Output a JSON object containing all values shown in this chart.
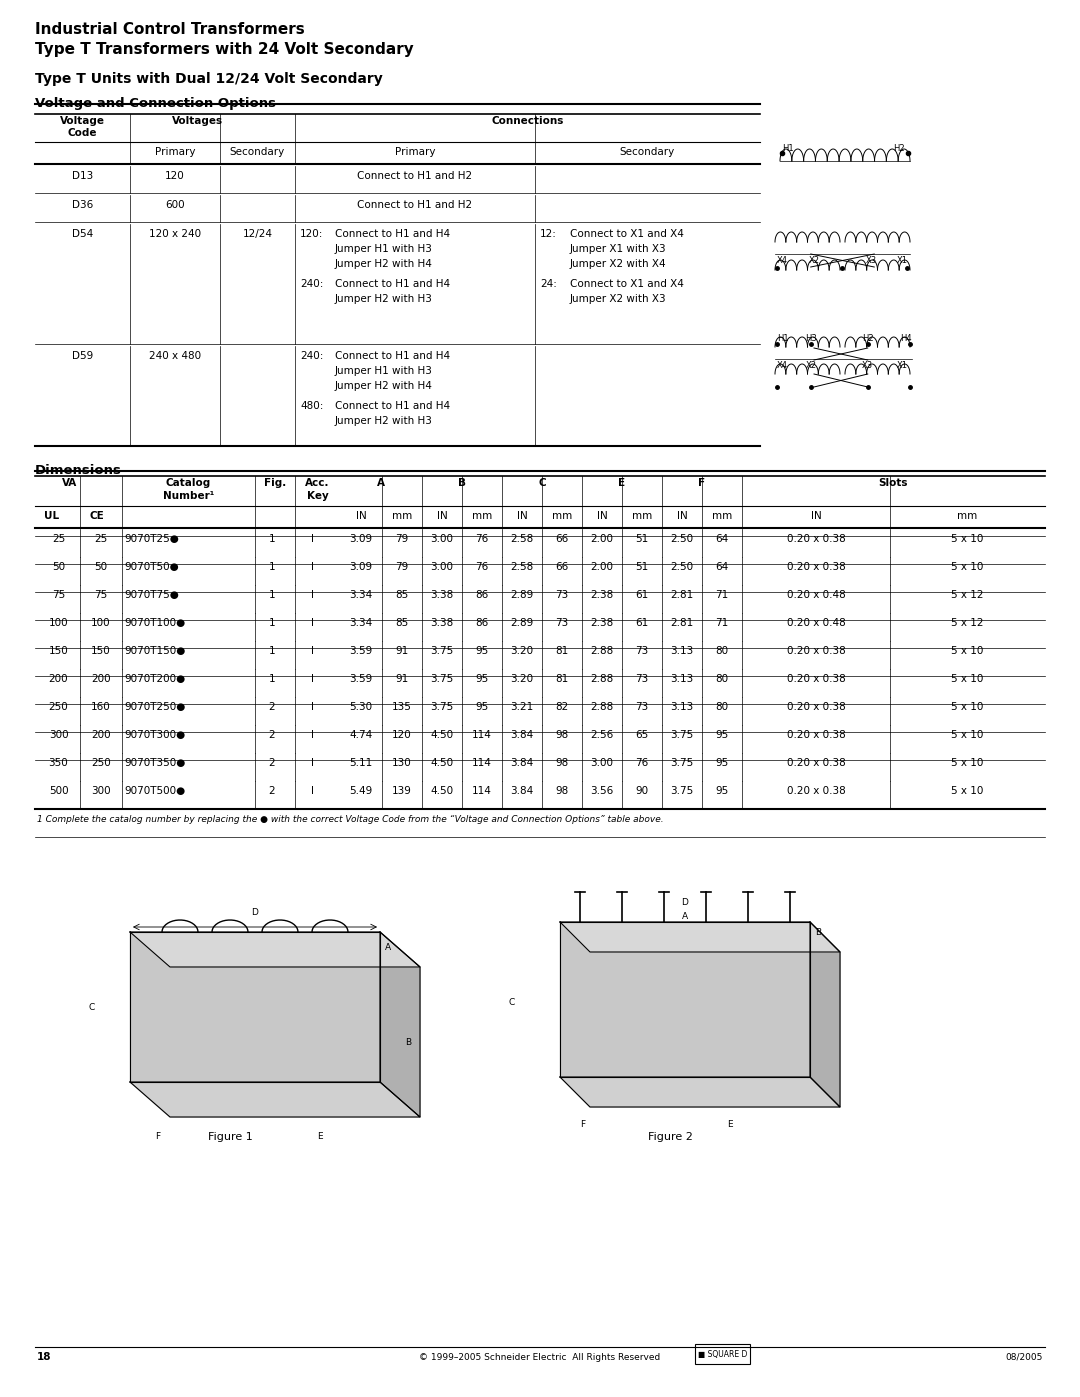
{
  "title_line1": "Industrial Control Transformers",
  "title_line2": "Type T Transformers with 24 Volt Secondary",
  "subtitle": "Type T Units with Dual 12/24 Volt Secondary",
  "section1_title": "Voltage and Connection Options",
  "section2_title": "Dimensions",
  "voltage_table": {
    "headers1": [
      "Voltage",
      "Voltages",
      "Connections"
    ],
    "headers2": [
      "Code",
      "Primary",
      "Secondary",
      "Primary",
      "Secondary"
    ],
    "rows": [
      {
        "code": "D13",
        "primary": "120",
        "secondary": "",
        "conn_primary": "Connect to H1 and H2",
        "conn_secondary": ""
      },
      {
        "code": "D36",
        "primary": "600",
        "secondary": "",
        "conn_primary": "Connect to H1 and H2",
        "conn_secondary": ""
      },
      {
        "code": "D54",
        "primary": "120 x 240",
        "secondary": "12/24",
        "conn_primary_120": "120:   Connect to H1 and H4\n          Jumper H1 with H3\n          Jumper H2 with H4",
        "conn_primary_240a": "240:   Connect to H1 and H4\n          Jumper H2 with H3",
        "conn_secondary_12": "12:   Connect to X1 and X4\n        Jumper X1 with X3\n        Jumper X2 with X4",
        "conn_secondary_24": "24:   Connect to X1 and X4\n        Jumper X2 with X3"
      },
      {
        "code": "D59",
        "primary": "240 x 480",
        "secondary": "",
        "conn_primary_240": "240:   Connect to H1 and H4\n          Jumper H1 with H3\n          Jumper H2 with H4",
        "conn_primary_480": "480:   Connect to H1 and H4\n          Jumper H2 with H3"
      }
    ]
  },
  "dimensions_table": {
    "rows": [
      {
        "ul": "25",
        "ce": "25",
        "cat": "9070T25●",
        "fig": "1",
        "acc": "I",
        "a_in": "3.09",
        "a_mm": "79",
        "b_in": "3.00",
        "b_mm": "76",
        "c_in": "2.58",
        "c_mm": "66",
        "e_in": "2.00",
        "e_mm": "51",
        "f_in": "2.50",
        "f_mm": "64",
        "s_in": "0.20 x 0.38",
        "s_mm": "5 x 10"
      },
      {
        "ul": "50",
        "ce": "50",
        "cat": "9070T50●",
        "fig": "1",
        "acc": "I",
        "a_in": "3.09",
        "a_mm": "79",
        "b_in": "3.00",
        "b_mm": "76",
        "c_in": "2.58",
        "c_mm": "66",
        "e_in": "2.00",
        "e_mm": "51",
        "f_in": "2.50",
        "f_mm": "64",
        "s_in": "0.20 x 0.38",
        "s_mm": "5 x 10"
      },
      {
        "ul": "75",
        "ce": "75",
        "cat": "9070T75●",
        "fig": "1",
        "acc": "I",
        "a_in": "3.34",
        "a_mm": "85",
        "b_in": "3.38",
        "b_mm": "86",
        "c_in": "2.89",
        "c_mm": "73",
        "e_in": "2.38",
        "e_mm": "61",
        "f_in": "2.81",
        "f_mm": "71",
        "s_in": "0.20 x 0.48",
        "s_mm": "5 x 12"
      },
      {
        "ul": "100",
        "ce": "100",
        "cat": "9070T100●",
        "fig": "1",
        "acc": "I",
        "a_in": "3.34",
        "a_mm": "85",
        "b_in": "3.38",
        "b_mm": "86",
        "c_in": "2.89",
        "c_mm": "73",
        "e_in": "2.38",
        "e_mm": "61",
        "f_in": "2.81",
        "f_mm": "71",
        "s_in": "0.20 x 0.48",
        "s_mm": "5 x 12"
      },
      {
        "ul": "150",
        "ce": "150",
        "cat": "9070T150●",
        "fig": "1",
        "acc": "I",
        "a_in": "3.59",
        "a_mm": "91",
        "b_in": "3.75",
        "b_mm": "95",
        "c_in": "3.20",
        "c_mm": "81",
        "e_in": "2.88",
        "e_mm": "73",
        "f_in": "3.13",
        "f_mm": "80",
        "s_in": "0.20 x 0.38",
        "s_mm": "5 x 10"
      },
      {
        "ul": "200",
        "ce": "200",
        "cat": "9070T200●",
        "fig": "1",
        "acc": "I",
        "a_in": "3.59",
        "a_mm": "91",
        "b_in": "3.75",
        "b_mm": "95",
        "c_in": "3.20",
        "c_mm": "81",
        "e_in": "2.88",
        "e_mm": "73",
        "f_in": "3.13",
        "f_mm": "80",
        "s_in": "0.20 x 0.38",
        "s_mm": "5 x 10"
      },
      {
        "ul": "250",
        "ce": "160",
        "cat": "9070T250●",
        "fig": "2",
        "acc": "I",
        "a_in": "5.30",
        "a_mm": "135",
        "b_in": "3.75",
        "b_mm": "95",
        "c_in": "3.21",
        "c_mm": "82",
        "e_in": "2.88",
        "e_mm": "73",
        "f_in": "3.13",
        "f_mm": "80",
        "s_in": "0.20 x 0.38",
        "s_mm": "5 x 10"
      },
      {
        "ul": "300",
        "ce": "200",
        "cat": "9070T300●",
        "fig": "2",
        "acc": "I",
        "a_in": "4.74",
        "a_mm": "120",
        "b_in": "4.50",
        "b_mm": "114",
        "c_in": "3.84",
        "c_mm": "98",
        "e_in": "2.56",
        "e_mm": "65",
        "f_in": "3.75",
        "f_mm": "95",
        "s_in": "0.20 x 0.38",
        "s_mm": "5 x 10"
      },
      {
        "ul": "350",
        "ce": "250",
        "cat": "9070T350●",
        "fig": "2",
        "acc": "I",
        "a_in": "5.11",
        "a_mm": "130",
        "b_in": "4.50",
        "b_mm": "114",
        "c_in": "3.84",
        "c_mm": "98",
        "e_in": "3.00",
        "e_mm": "76",
        "f_in": "3.75",
        "f_mm": "95",
        "s_in": "0.20 x 0.38",
        "s_mm": "5 x 10"
      },
      {
        "ul": "500",
        "ce": "300",
        "cat": "9070T500●",
        "fig": "2",
        "acc": "I",
        "a_in": "5.49",
        "a_mm": "139",
        "b_in": "4.50",
        "b_mm": "114",
        "c_in": "3.84",
        "c_mm": "98",
        "e_in": "3.56",
        "e_mm": "90",
        "f_in": "3.75",
        "f_mm": "95",
        "s_in": "0.20 x 0.38",
        "s_mm": "5 x 10"
      }
    ],
    "footnote": "1 Complete the catalog number by replacing the ● with the correct Voltage Code from the “Voltage and Connection Options” table above."
  },
  "footer": "© 1999–2005 Schneider Electric  All Rights Reserved          08/2005",
  "page_number": "18"
}
